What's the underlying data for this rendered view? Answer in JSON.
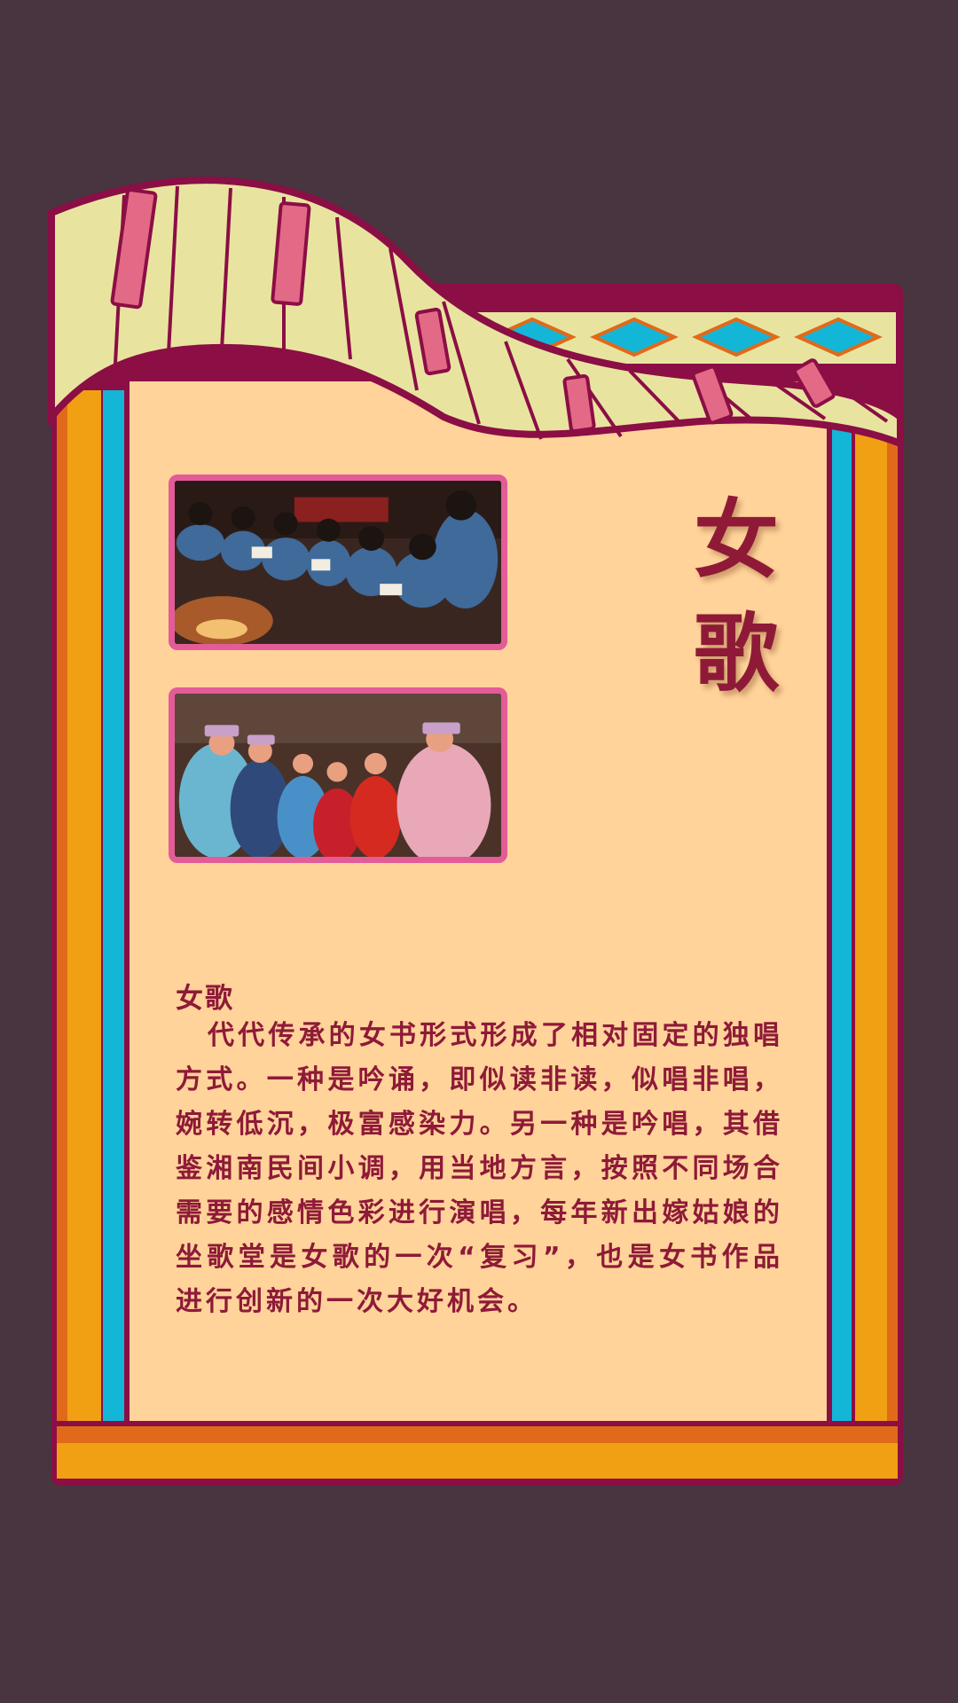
{
  "poster": {
    "title_chars": [
      "女",
      "歌"
    ],
    "heading": "女歌",
    "body": "代代传承的女书形式形成了相对固定的独唱方式。一种是吟诵，即似读非读，似唱非唱，婉转低沉，极富感染力。另一种是吟唱，其借鉴湘南民间小调，用当地方言，按照不同场合需要的感情色彩进行演唱，每年新出嫁姑娘的坐歌堂是女歌的一次“复习”，也是女书作品进行创新的一次大好机会。"
  },
  "photos": [
    {
      "subject": "women-reading-by-fire"
    },
    {
      "subject": "women-in-costume-singing"
    }
  ],
  "colors": {
    "background": "#483540",
    "panel": "#ffd39a",
    "border": "#8b0e45",
    "orange": "#f0a012",
    "dark_orange": "#e06a1a",
    "cyan": "#14b6d8",
    "cream": "#e8e4a0",
    "pink": "#e35c98",
    "text": "#8e1a38"
  }
}
